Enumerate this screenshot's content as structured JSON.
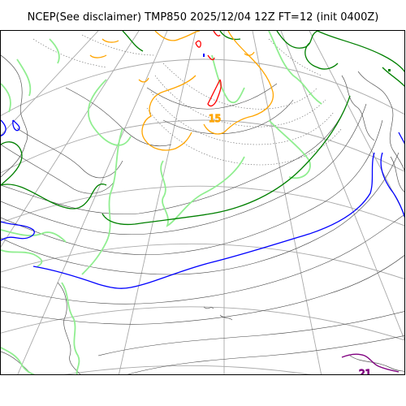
{
  "title": "NCEP(See disclaimer) TMP850 2025/12/04 12Z FT=12 (init 0400Z)",
  "colors": {
    "graticule": "#a9a9a9",
    "coastline": "#555555",
    "isotherm_thin": "#444444",
    "isotherm_dotted": "#666666",
    "light_green": "#90ee90",
    "green": "#008000",
    "blue": "#0000ff",
    "orange": "#ffa500",
    "red": "#ff0000",
    "purple": "#800080"
  },
  "contour_labels": [
    {
      "text": "15",
      "color": "#ffa500"
    },
    {
      "text": "21",
      "color": "#800080"
    }
  ]
}
